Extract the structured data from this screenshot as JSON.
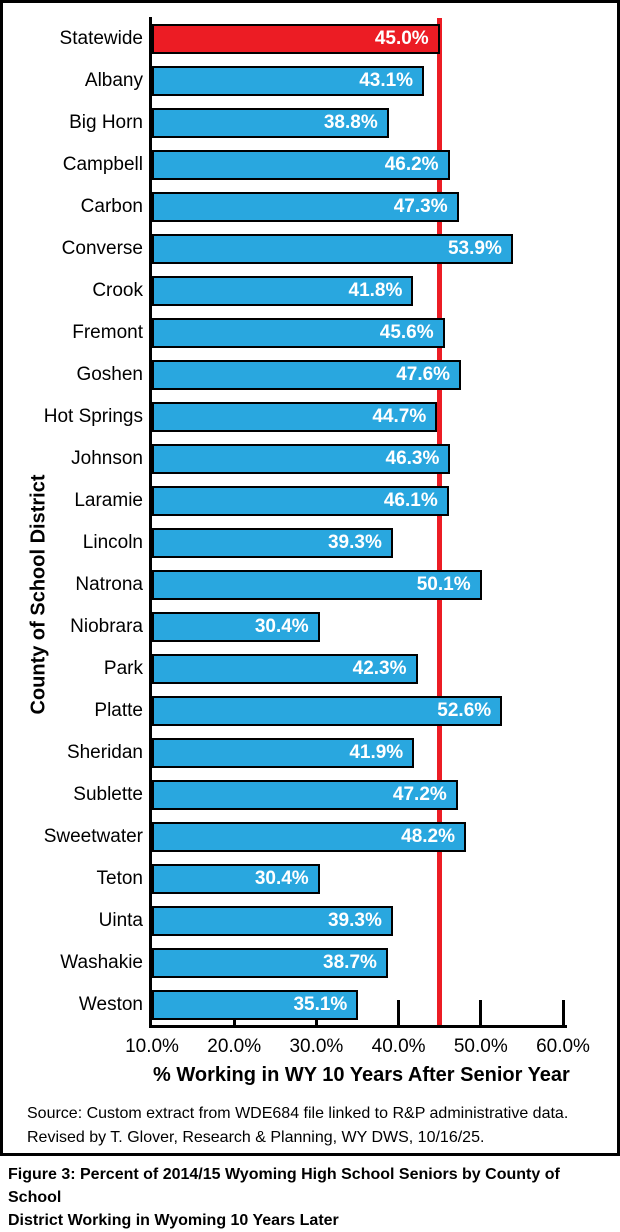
{
  "chart_data": {
    "type": "bar",
    "orientation": "horizontal",
    "xlabel": "% Working in WY 10 Years After Senior Year",
    "ylabel": "County of School District",
    "xlim": [
      10,
      60
    ],
    "x_tick_values": [
      10,
      20,
      30,
      40,
      50,
      60
    ],
    "x_tick_labels": [
      "10.0%",
      "20.0%",
      "30.0%",
      "40.0%",
      "50.0%",
      "60.0%"
    ],
    "categories": [
      "Statewide",
      "Albany",
      "Big Horn",
      "Campbell",
      "Carbon",
      "Converse",
      "Crook",
      "Fremont",
      "Goshen",
      "Hot Springs",
      "Johnson",
      "Laramie",
      "Lincoln",
      "Natrona",
      "Niobrara",
      "Park",
      "Platte",
      "Sheridan",
      "Sublette",
      "Sweetwater",
      "Teton",
      "Uinta",
      "Washakie",
      "Weston"
    ],
    "values": [
      45.0,
      43.1,
      38.8,
      46.2,
      47.3,
      53.9,
      41.8,
      45.6,
      47.6,
      44.7,
      46.3,
      46.1,
      39.3,
      50.1,
      30.4,
      42.3,
      52.6,
      41.9,
      47.2,
      48.2,
      30.4,
      39.3,
      38.7,
      35.1
    ],
    "value_label_format": "percent_one_decimal",
    "highlight_category": "Statewide",
    "reference_line_value": 45.0,
    "bar_color": "#29A7DF",
    "highlight_color": "#EC1C24",
    "reference_line_color": "#EC1C24",
    "gridlines": false,
    "legend": "none"
  },
  "source": {
    "lines": [
      "Source: Custom extract from WDE684 file linked to R&P administrative data.",
      "Revised by T. Glover, Research & Planning, WY DWS, 10/16/25."
    ]
  },
  "caption": {
    "lines": [
      "Figure 3: Percent of 2014/15 Wyoming High School Seniors by County of School",
      "District Working in Wyoming 10 Years Later"
    ]
  }
}
